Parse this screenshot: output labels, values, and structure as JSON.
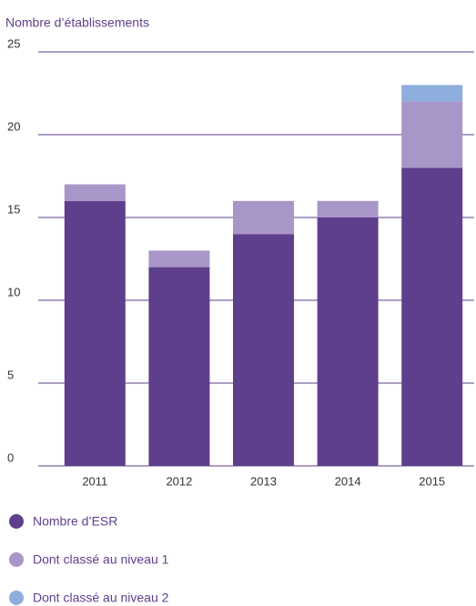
{
  "chart_data": {
    "type": "stacked_bar",
    "title": "Nombre d’établissements",
    "categories": [
      "2011",
      "2012",
      "2013",
      "2014",
      "2015"
    ],
    "series": [
      {
        "name": "Nombre d’ESR",
        "color": "#5e3f8c",
        "values": [
          16,
          12,
          14,
          15,
          18
        ]
      },
      {
        "name": "Dont classé au niveau 1",
        "color": "#a996c8",
        "values": [
          1,
          1,
          2,
          1,
          4
        ]
      },
      {
        "name": "Dont classé au niveau 2",
        "color": "#8eaedd",
        "values": [
          0,
          0,
          0,
          0,
          1
        ]
      }
    ],
    "ylim": [
      0,
      25
    ],
    "yticks": [
      0,
      5,
      10,
      15,
      20,
      25
    ],
    "grid": true,
    "legend": "bottom"
  }
}
